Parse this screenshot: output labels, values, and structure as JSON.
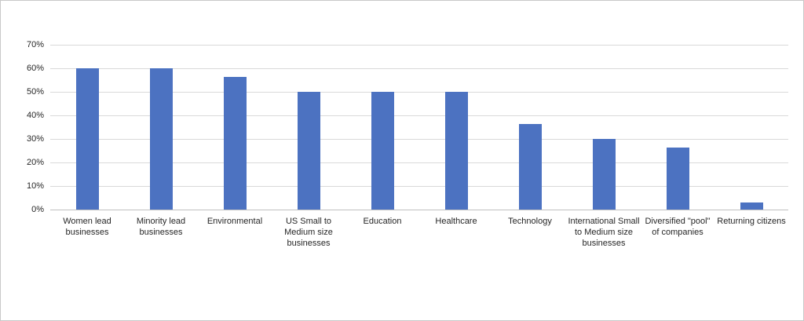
{
  "chart_data": {
    "type": "bar",
    "title": "",
    "xlabel": "",
    "ylabel": "",
    "categories": [
      "Women lead businesses",
      "Minority lead businesses",
      "Environmental",
      "US Small to Medium size businesses",
      "Education",
      "Healthcare",
      "Technology",
      "International Small to Medium size businesses",
      "Diversified \"pool\" of companies",
      "Returning citizens"
    ],
    "values": [
      60,
      60,
      56.5,
      50,
      50,
      50,
      36.5,
      30,
      26.5,
      3
    ],
    "value_unit": "%",
    "ylim": [
      0,
      70
    ],
    "ytick_values": [
      0,
      10,
      20,
      30,
      40,
      50,
      60,
      70
    ],
    "ytick_labels": [
      "0%",
      "10%",
      "20%",
      "30%",
      "40%",
      "50%",
      "60%",
      "70%"
    ],
    "grid": true,
    "legend": false,
    "colors": {
      "bar": "#4C72C1",
      "gridline": "#D9D9D9",
      "axis_line": "#BFBFBF",
      "tick_text": "#262626",
      "frame_border": "#C9C9C9",
      "background": "#FFFFFF"
    }
  }
}
